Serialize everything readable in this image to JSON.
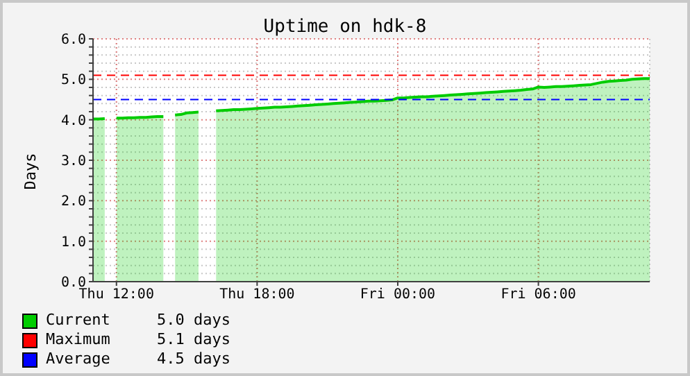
{
  "chart_data": {
    "type": "area",
    "title": "Uptime on hdk-8",
    "ylabel": "Days",
    "categories": [
      null,
      null,
      null,
      null,
      "Thu 12:00",
      null,
      null,
      null,
      null,
      null,
      null,
      null,
      null,
      null,
      null,
      null,
      null,
      null,
      null,
      null,
      null,
      null,
      null,
      null,
      null,
      null,
      null,
      null,
      "Thu 18:00",
      null,
      null,
      null,
      null,
      null,
      null,
      null,
      null,
      null,
      null,
      null,
      null,
      null,
      null,
      null,
      null,
      null,
      null,
      null,
      null,
      null,
      null,
      null,
      "Fri 00:00",
      null,
      null,
      null,
      null,
      null,
      null,
      null,
      null,
      null,
      null,
      null,
      null,
      null,
      null,
      null,
      null,
      null,
      null,
      null,
      null,
      null,
      null,
      null,
      "Fri 06:00",
      null,
      null,
      null,
      null,
      null,
      null,
      null,
      null,
      null,
      null,
      null,
      null,
      null,
      null,
      null,
      null,
      null,
      null,
      null
    ],
    "series": [
      {
        "name": "Current",
        "color": "#00cc00",
        "values": [
          4.02,
          4.02,
          4.03,
          null,
          4.04,
          4.04,
          4.05,
          4.05,
          4.06,
          4.06,
          4.07,
          4.08,
          4.08,
          null,
          4.12,
          4.13,
          4.17,
          4.18,
          4.19,
          null,
          null,
          4.22,
          4.23,
          4.24,
          4.25,
          4.25,
          4.26,
          4.27,
          4.28,
          4.29,
          4.3,
          4.31,
          4.31,
          4.32,
          4.33,
          4.34,
          4.35,
          4.36,
          4.37,
          4.38,
          4.39,
          4.4,
          4.41,
          4.42,
          4.43,
          4.44,
          4.45,
          4.46,
          4.46,
          4.47,
          4.48,
          4.49,
          4.54,
          4.54,
          4.55,
          4.56,
          4.57,
          4.57,
          4.58,
          4.59,
          4.6,
          4.61,
          4.62,
          4.63,
          4.64,
          4.65,
          4.66,
          4.67,
          4.68,
          4.69,
          4.7,
          4.71,
          4.72,
          4.73,
          4.75,
          4.76,
          4.81,
          4.8,
          4.81,
          4.82,
          4.82,
          4.83,
          4.84,
          4.85,
          4.86,
          4.87,
          4.9,
          4.93,
          4.95,
          4.96,
          4.97,
          4.98,
          5.0,
          5.01,
          5.02,
          5.02
        ]
      }
    ],
    "ref_lines": [
      {
        "axis": "y",
        "value": 5.1,
        "label": "Maximum",
        "color": "#ff0000",
        "line_style": "dashed"
      },
      {
        "axis": "y",
        "value": 4.5,
        "label": "Average",
        "color": "#0000ff",
        "line_style": "dashed"
      }
    ],
    "annotations": [
      "5.0 days",
      "5.1 days",
      "4.5 days"
    ],
    "ylim": [
      0,
      6
    ],
    "yticks": [
      {
        "value": 0,
        "label": "0.0"
      },
      {
        "value": 0.2,
        "label": null
      },
      {
        "value": 0.4,
        "label": null
      },
      {
        "value": 0.6,
        "label": null
      },
      {
        "value": 0.8,
        "label": null
      },
      {
        "value": 1,
        "label": "1.0"
      },
      {
        "value": 1.2,
        "label": null
      },
      {
        "value": 1.4,
        "label": null
      },
      {
        "value": 1.6,
        "label": null
      },
      {
        "value": 1.8,
        "label": null
      },
      {
        "value": 2,
        "label": "2.0"
      },
      {
        "value": 2.2,
        "label": null
      },
      {
        "value": 2.4,
        "label": null
      },
      {
        "value": 2.6,
        "label": null
      },
      {
        "value": 2.8,
        "label": null
      },
      {
        "value": 3,
        "label": "3.0"
      },
      {
        "value": 3.2,
        "label": null
      },
      {
        "value": 3.4,
        "label": null
      },
      {
        "value": 3.6,
        "label": null
      },
      {
        "value": 3.8,
        "label": null
      },
      {
        "value": 4,
        "label": "4.0"
      },
      {
        "value": 4.2,
        "label": null
      },
      {
        "value": 4.4,
        "label": null
      },
      {
        "value": 4.6,
        "label": null
      },
      {
        "value": 4.8,
        "label": null
      },
      {
        "value": 5,
        "label": "5.0"
      },
      {
        "value": 5.2,
        "label": null
      },
      {
        "value": 5.4,
        "label": null
      },
      {
        "value": 5.6,
        "label": null
      },
      {
        "value": 5.8,
        "label": null
      },
      {
        "value": 6,
        "label": "6.0"
      }
    ],
    "grid": true,
    "legend": "bottom left"
  }
}
